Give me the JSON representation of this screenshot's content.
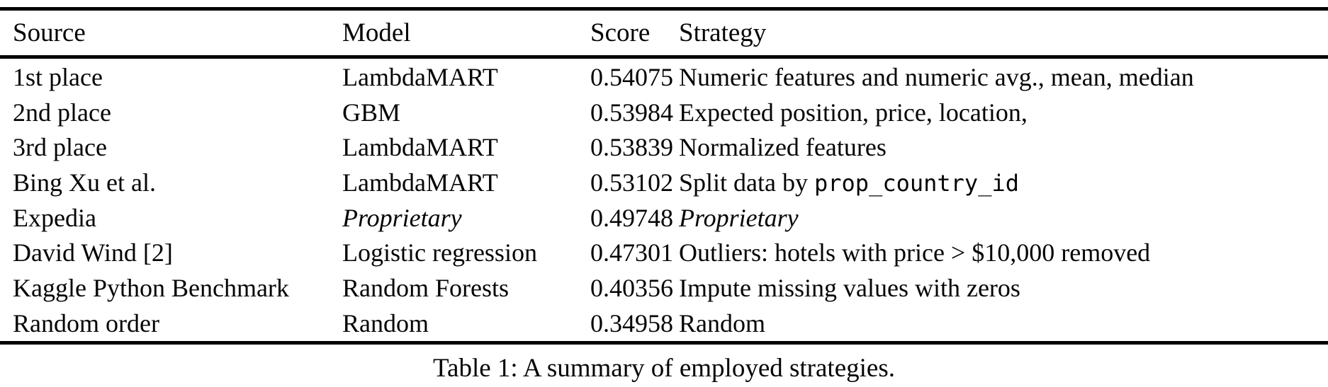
{
  "table": {
    "columns": [
      {
        "key": "source",
        "label": "Source"
      },
      {
        "key": "model",
        "label": "Model"
      },
      {
        "key": "score",
        "label": "Score"
      },
      {
        "key": "strategy",
        "label": "Strategy"
      }
    ],
    "rows": [
      {
        "source": "1st place",
        "model": "LambdaMART",
        "model_italic": false,
        "score": "0.54075",
        "strategy": "Numeric features and numeric avg., mean, median",
        "strategy_italic": false,
        "strategy_code": ""
      },
      {
        "source": "2nd place",
        "model": "GBM",
        "model_italic": false,
        "score": "0.53984",
        "strategy": "Expected position, price, location,",
        "strategy_italic": false,
        "strategy_code": ""
      },
      {
        "source": "3rd place",
        "model": "LambdaMART",
        "model_italic": false,
        "score": "0.53839",
        "strategy": "Normalized features",
        "strategy_italic": false,
        "strategy_code": ""
      },
      {
        "source": "Bing Xu et al.",
        "model": "LambdaMART",
        "model_italic": false,
        "score": "0.53102",
        "strategy": "Split data by ",
        "strategy_italic": false,
        "strategy_code": "prop_country_id"
      },
      {
        "source": "Expedia",
        "model": "Proprietary",
        "model_italic": true,
        "score": "0.49748",
        "strategy": "Proprietary",
        "strategy_italic": true,
        "strategy_code": ""
      },
      {
        "source": "David Wind [2]",
        "model": "Logistic regression",
        "model_italic": false,
        "score": "0.47301",
        "strategy": "Outliers: hotels with price > $10,000 removed",
        "strategy_italic": false,
        "strategy_code": ""
      },
      {
        "source": "Kaggle Python Benchmark",
        "model": "Random Forests",
        "model_italic": false,
        "score": "0.40356",
        "strategy": "Impute missing values with zeros",
        "strategy_italic": false,
        "strategy_code": ""
      },
      {
        "source": "Random order",
        "model": "Random",
        "model_italic": false,
        "score": "0.34958",
        "strategy": "Random",
        "strategy_italic": false,
        "strategy_code": ""
      }
    ],
    "caption": "Table 1: A summary of employed strategies."
  },
  "colors": {
    "background": "#ffffff",
    "text": "#050505",
    "rule": "#000000"
  }
}
